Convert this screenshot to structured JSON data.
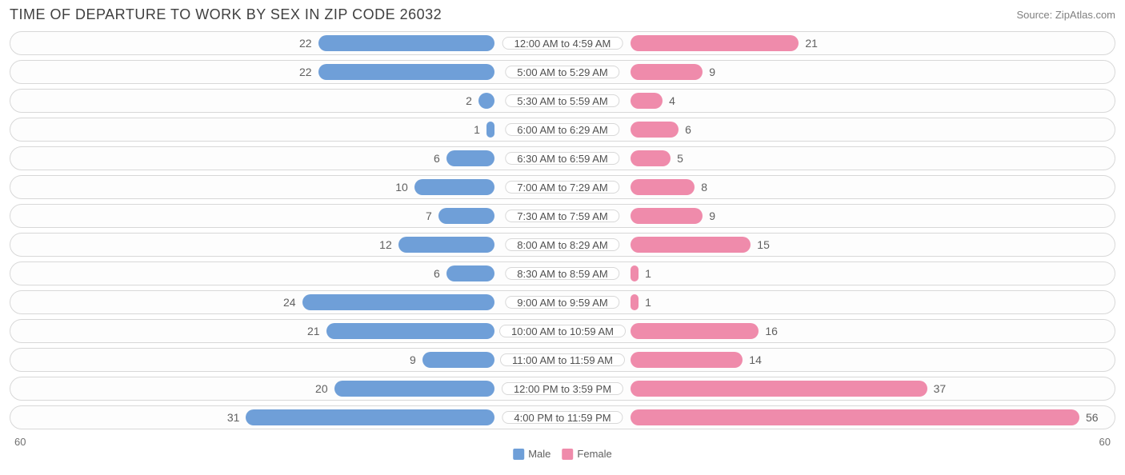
{
  "title": "TIME OF DEPARTURE TO WORK BY SEX IN ZIP CODE 26032",
  "source": "Source: ZipAtlas.com",
  "axis_max": 60,
  "axis_left_label": "60",
  "axis_right_label": "60",
  "colors": {
    "male": "#6f9fd8",
    "female": "#ef8bab",
    "row_border": "#d8d8d8",
    "text": "#505050",
    "background": "#ffffff"
  },
  "legend": {
    "male": "Male",
    "female": "Female"
  },
  "rows": [
    {
      "label": "12:00 AM to 4:59 AM",
      "male": 22,
      "female": 21
    },
    {
      "label": "5:00 AM to 5:29 AM",
      "male": 22,
      "female": 9
    },
    {
      "label": "5:30 AM to 5:59 AM",
      "male": 2,
      "female": 4
    },
    {
      "label": "6:00 AM to 6:29 AM",
      "male": 1,
      "female": 6
    },
    {
      "label": "6:30 AM to 6:59 AM",
      "male": 6,
      "female": 5
    },
    {
      "label": "7:00 AM to 7:29 AM",
      "male": 10,
      "female": 8
    },
    {
      "label": "7:30 AM to 7:59 AM",
      "male": 7,
      "female": 9
    },
    {
      "label": "8:00 AM to 8:29 AM",
      "male": 12,
      "female": 15
    },
    {
      "label": "8:30 AM to 8:59 AM",
      "male": 6,
      "female": 1
    },
    {
      "label": "9:00 AM to 9:59 AM",
      "male": 24,
      "female": 1
    },
    {
      "label": "10:00 AM to 10:59 AM",
      "male": 21,
      "female": 16
    },
    {
      "label": "11:00 AM to 11:59 AM",
      "male": 9,
      "female": 14
    },
    {
      "label": "12:00 PM to 3:59 PM",
      "male": 20,
      "female": 37
    },
    {
      "label": "4:00 PM to 11:59 PM",
      "male": 31,
      "female": 56
    }
  ]
}
